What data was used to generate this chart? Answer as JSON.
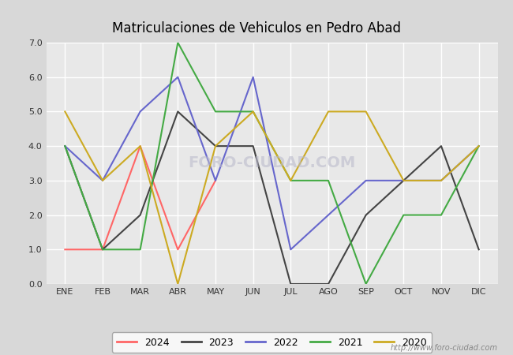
{
  "title": "Matriculaciones de Vehiculos en Pedro Abad",
  "months": [
    "ENE",
    "FEB",
    "MAR",
    "ABR",
    "MAY",
    "JUN",
    "JUL",
    "AGO",
    "SEP",
    "OCT",
    "NOV",
    "DIC"
  ],
  "series": {
    "2024": {
      "color": "#ff6666",
      "values": [
        1,
        1,
        4,
        1,
        3,
        null,
        null,
        null,
        null,
        null,
        null,
        null
      ]
    },
    "2023": {
      "color": "#444444",
      "values": [
        4,
        1,
        2,
        5,
        4,
        4,
        0,
        0,
        2,
        3,
        4,
        1
      ]
    },
    "2022": {
      "color": "#6666cc",
      "values": [
        4,
        3,
        5,
        6,
        3,
        6,
        1,
        2,
        3,
        3,
        3,
        4
      ]
    },
    "2021": {
      "color": "#44aa44",
      "values": [
        4,
        1,
        1,
        7,
        5,
        5,
        3,
        3,
        0,
        2,
        2,
        4
      ]
    },
    "2020": {
      "color": "#ccaa22",
      "values": [
        5,
        3,
        4,
        0,
        4,
        5,
        3,
        5,
        5,
        3,
        3,
        4
      ]
    }
  },
  "ylim": [
    0,
    7
  ],
  "yticks": [
    0.0,
    1.0,
    2.0,
    3.0,
    4.0,
    5.0,
    6.0,
    7.0
  ],
  "fig_bg_color": "#d8d8d8",
  "plot_bg_color": "#e8e8e8",
  "grid_color": "#ffffff",
  "title_color": "#000000",
  "title_fontsize": 12,
  "tick_fontsize": 8,
  "tick_color": "#333333",
  "watermark_chart": "FORO-CIUDAD.COM",
  "watermark_url": "http://www.foro-ciudad.com",
  "legend_order": [
    "2024",
    "2023",
    "2022",
    "2021",
    "2020"
  ],
  "linewidth": 1.5
}
